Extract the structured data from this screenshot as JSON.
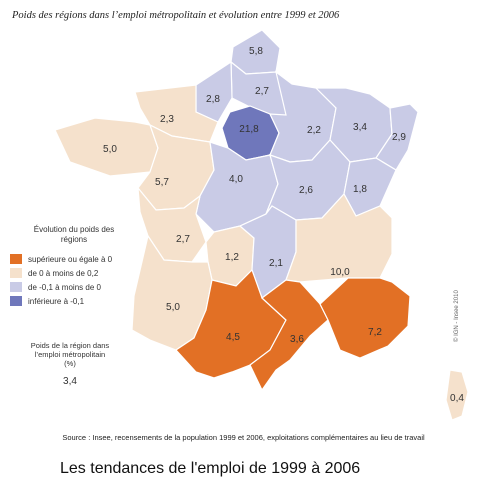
{
  "title": "Poids des régions dans l’emploi métropolitain et évolution entre 1999 et 2006",
  "legend": {
    "title": "Évolution du poids des régions",
    "items": [
      {
        "label": "supérieure ou égale à 0",
        "color": "#e27025"
      },
      {
        "label": "de 0 à moins de 0,2",
        "color": "#f5e1cc"
      },
      {
        "label": "de -0,1 à moins de 0",
        "color": "#c9cbe6"
      },
      {
        "label": "inférieure à -0,1",
        "color": "#6f77bb"
      }
    ]
  },
  "size_legend": {
    "title": "Poids de la région dans l’emploi métropolitain (%)",
    "value": "3,4"
  },
  "regions": [
    {
      "value": "5,8",
      "category": 2
    },
    {
      "value": "2,7",
      "category": 2
    },
    {
      "value": "2,8",
      "category": 2
    },
    {
      "value": "21,8",
      "category": 3
    },
    {
      "value": "2,3",
      "category": 1
    },
    {
      "value": "5,0",
      "category": 1
    },
    {
      "value": "5,7",
      "category": 1
    },
    {
      "value": "4,0",
      "category": 2
    },
    {
      "value": "2,2",
      "category": 2
    },
    {
      "value": "3,4",
      "category": 2
    },
    {
      "value": "2,9",
      "category": 2
    },
    {
      "value": "2,6",
      "category": 2
    },
    {
      "value": "1,8",
      "category": 2
    },
    {
      "value": "2,7",
      "category": 1
    },
    {
      "value": "1,2",
      "category": 1
    },
    {
      "value": "2,1",
      "category": 2
    },
    {
      "value": "10,0",
      "category": 1
    },
    {
      "value": "5,0",
      "category": 1
    },
    {
      "value": "4,5",
      "category": 0
    },
    {
      "value": "3,6",
      "category": 0
    },
    {
      "value": "7,2",
      "category": 0
    },
    {
      "value": "0,4",
      "category": 1
    }
  ],
  "credit": "© IGN - Insee 2010",
  "source": "Source : Insee, recensements de la population 1999 et 2006, exploitations complémentaires au lieu de travail",
  "caption": "Les tendances de l'emploi de 1999 à 2006"
}
